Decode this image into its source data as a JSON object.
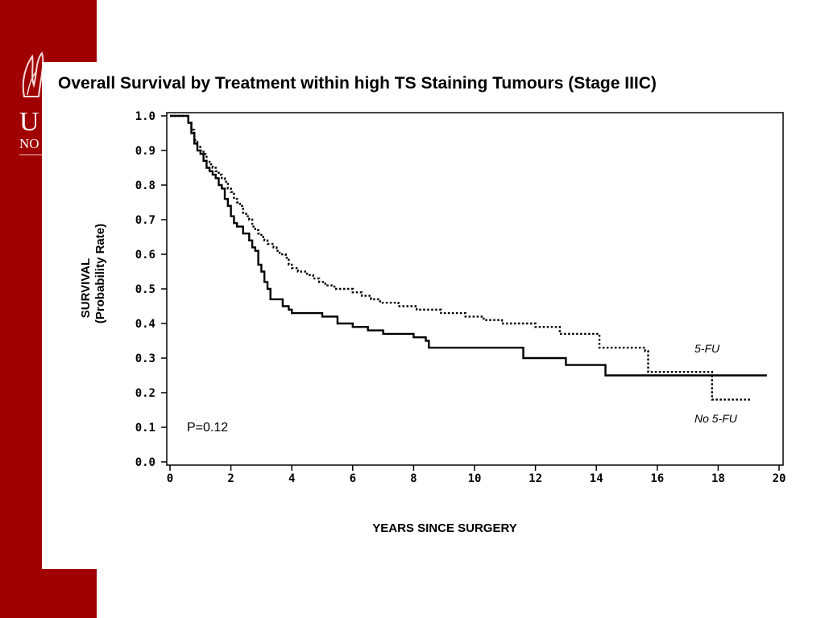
{
  "slide": {
    "brand_color": "#a00000",
    "logo_letters": "U",
    "logo_subtext": "NO"
  },
  "chart_data": {
    "type": "line",
    "title": "Overall Survival by Treatment within high TS Staining Tumours (Stage IIIC)",
    "xlabel": "YEARS SINCE SURGERY",
    "ylabel_line1": "SURVIVAL",
    "ylabel_line2": "(Probability Rate)",
    "xlim": [
      0,
      20
    ],
    "ylim": [
      0.0,
      1.0
    ],
    "x_ticks": [
      0,
      2,
      4,
      6,
      8,
      10,
      12,
      14,
      16,
      18,
      20
    ],
    "x_tick_labels": [
      "0",
      "2",
      "4",
      "6",
      "8",
      "10",
      "12",
      "14",
      "16",
      "18",
      "20"
    ],
    "y_ticks": [
      0.0,
      0.1,
      0.2,
      0.3,
      0.4,
      0.5,
      0.6,
      0.7,
      0.8,
      0.9,
      1.0
    ],
    "y_tick_labels": [
      "0.0",
      "0.1",
      "0.2",
      "0.3",
      "0.4",
      "0.5",
      "0.6",
      "0.7",
      "0.8",
      "0.9",
      "1.0"
    ],
    "annotation": "P=0.12",
    "grid": false,
    "series": [
      {
        "name": "5-FU",
        "style": "dotted",
        "x": [
          0,
          0.6,
          0.7,
          0.8,
          0.9,
          1.0,
          1.1,
          1.2,
          1.3,
          1.4,
          1.5,
          1.6,
          1.7,
          1.8,
          1.9,
          2.0,
          2.1,
          2.2,
          2.3,
          2.4,
          2.5,
          2.6,
          2.7,
          2.8,
          2.9,
          3.0,
          3.1,
          3.2,
          3.3,
          3.4,
          3.5,
          3.6,
          3.7,
          3.8,
          3.9,
          4.0,
          4.2,
          4.5,
          4.7,
          4.9,
          5.1,
          5.4,
          5.7,
          6.0,
          6.3,
          6.6,
          6.9,
          7.2,
          7.5,
          7.8,
          8.1,
          8.5,
          8.9,
          9.3,
          9.7,
          10.0,
          10.3,
          10.6,
          10.9,
          11.2,
          11.6,
          12.0,
          12.5,
          12.8,
          13.2,
          13.6,
          14.0,
          14.1,
          14.5,
          15.0,
          15.6,
          15.7,
          16.0,
          17.0,
          17.7,
          17.8,
          19.1
        ],
        "y": [
          1.0,
          0.98,
          0.96,
          0.93,
          0.91,
          0.9,
          0.89,
          0.87,
          0.86,
          0.85,
          0.84,
          0.83,
          0.82,
          0.81,
          0.79,
          0.78,
          0.76,
          0.75,
          0.74,
          0.72,
          0.71,
          0.7,
          0.68,
          0.67,
          0.66,
          0.65,
          0.64,
          0.63,
          0.63,
          0.62,
          0.61,
          0.6,
          0.6,
          0.59,
          0.57,
          0.56,
          0.55,
          0.54,
          0.53,
          0.52,
          0.51,
          0.5,
          0.5,
          0.49,
          0.48,
          0.47,
          0.46,
          0.46,
          0.45,
          0.45,
          0.44,
          0.44,
          0.43,
          0.43,
          0.42,
          0.42,
          0.41,
          0.41,
          0.4,
          0.4,
          0.4,
          0.39,
          0.39,
          0.37,
          0.37,
          0.37,
          0.37,
          0.33,
          0.33,
          0.33,
          0.32,
          0.26,
          0.26,
          0.26,
          0.26,
          0.18,
          0.18
        ]
      },
      {
        "name": "No 5-FU",
        "style": "solid",
        "x": [
          0,
          0.5,
          0.6,
          0.7,
          0.8,
          0.9,
          1.0,
          1.1,
          1.2,
          1.3,
          1.4,
          1.5,
          1.6,
          1.7,
          1.8,
          1.9,
          2.0,
          2.1,
          2.2,
          2.4,
          2.6,
          2.7,
          2.8,
          2.9,
          3.0,
          3.1,
          3.2,
          3.3,
          3.5,
          3.7,
          3.9,
          4.0,
          4.5,
          5.0,
          5.5,
          6.0,
          6.5,
          7.0,
          7.5,
          8.0,
          8.4,
          8.5,
          9.0,
          10.0,
          11.0,
          11.5,
          11.6,
          12.0,
          12.5,
          13.0,
          13.5,
          14.0,
          14.2,
          14.3,
          15.0,
          16.0,
          17.0,
          18.0,
          19.6
        ],
        "y": [
          1.0,
          1.0,
          0.98,
          0.95,
          0.92,
          0.9,
          0.89,
          0.87,
          0.85,
          0.84,
          0.83,
          0.82,
          0.8,
          0.79,
          0.76,
          0.74,
          0.71,
          0.69,
          0.68,
          0.66,
          0.64,
          0.62,
          0.61,
          0.57,
          0.55,
          0.52,
          0.5,
          0.47,
          0.47,
          0.45,
          0.44,
          0.43,
          0.43,
          0.42,
          0.4,
          0.39,
          0.38,
          0.37,
          0.37,
          0.36,
          0.35,
          0.33,
          0.33,
          0.33,
          0.33,
          0.33,
          0.3,
          0.3,
          0.3,
          0.28,
          0.28,
          0.28,
          0.28,
          0.25,
          0.25,
          0.25,
          0.25,
          0.25,
          0.25
        ]
      }
    ]
  }
}
